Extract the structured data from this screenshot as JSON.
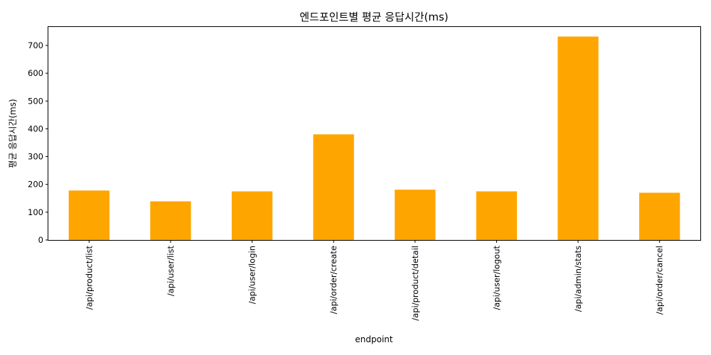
{
  "chart_data": {
    "type": "bar",
    "title": "엔드포인트별 평균 응답시간(ms)",
    "xlabel": "endpoint",
    "ylabel": "평균 응답시간(ms)",
    "categories": [
      "/api/product/list",
      "/api/user/list",
      "/api/user/login",
      "/api/order/create",
      "/api/product/detail",
      "/api/user/logout",
      "/api/admin/stats",
      "/api/order/cancel"
    ],
    "values": [
      178,
      139,
      175,
      380,
      181,
      175,
      732,
      170
    ],
    "ylim": [
      0,
      769
    ],
    "yticks": [
      0,
      100,
      200,
      300,
      400,
      500,
      600,
      700
    ],
    "bar_color": "#ffa500",
    "grid": false,
    "legend": "none"
  }
}
